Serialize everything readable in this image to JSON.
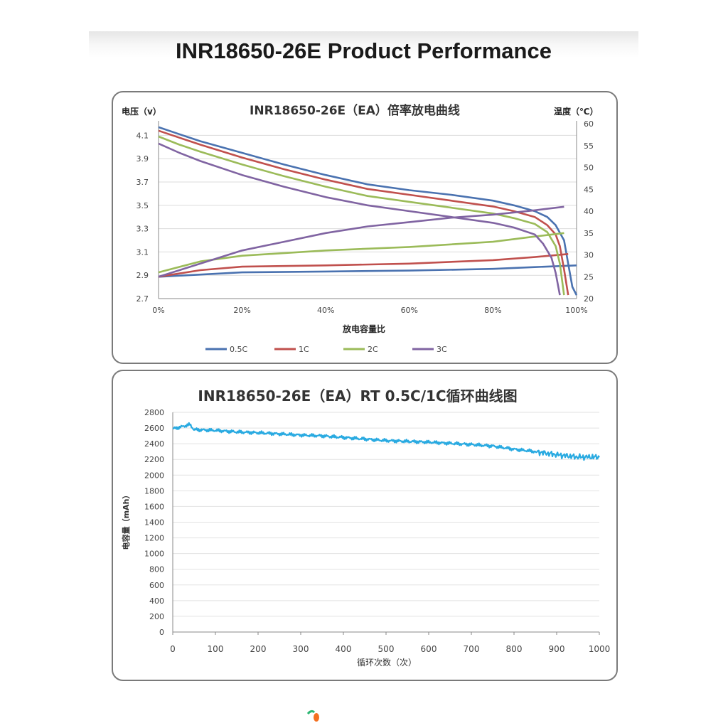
{
  "page_title": "INR18650-26E Product Performance",
  "chart_data": [
    {
      "type": "line",
      "title": "INR18650-26E（EA）倍率放电曲线",
      "ylabel": "电压（v）",
      "y2label": "温度（℃）",
      "xlabel": "放电容量比",
      "xlim": [
        0,
        100
      ],
      "ylim": [
        2.7,
        4.2
      ],
      "y2lim": [
        20,
        60
      ],
      "x_ticks": [
        "0%",
        "20%",
        "40%",
        "60%",
        "80%",
        "100%"
      ],
      "y_ticks": [
        "2.7",
        "2.9",
        "3.1",
        "3.3",
        "3.5",
        "3.7",
        "3.9",
        "4.1"
      ],
      "y2_ticks": [
        "20",
        "25",
        "30",
        "35",
        "40",
        "45",
        "50",
        "55",
        "60"
      ],
      "grid": true,
      "legend_position": "bottom",
      "series": [
        {
          "name": "0.5C",
          "color": "#4a72b0",
          "voltage": [
            [
              0,
              4.17
            ],
            [
              5,
              4.11
            ],
            [
              10,
              4.05
            ],
            [
              20,
              3.95
            ],
            [
              30,
              3.85
            ],
            [
              40,
              3.76
            ],
            [
              50,
              3.68
            ],
            [
              60,
              3.63
            ],
            [
              70,
              3.59
            ],
            [
              80,
              3.54
            ],
            [
              85,
              3.5
            ],
            [
              90,
              3.45
            ],
            [
              93,
              3.4
            ],
            [
              95,
              3.33
            ],
            [
              97,
              3.2
            ],
            [
              98,
              3.0
            ],
            [
              99,
              2.8
            ],
            [
              100,
              2.73
            ]
          ],
          "temperature": [
            [
              0,
              25
            ],
            [
              20,
              26
            ],
            [
              40,
              26.2
            ],
            [
              60,
              26.4
            ],
            [
              80,
              26.8
            ],
            [
              90,
              27.2
            ],
            [
              100,
              27.6
            ]
          ]
        },
        {
          "name": "1C",
          "color": "#c0504d",
          "voltage": [
            [
              0,
              4.14
            ],
            [
              5,
              4.08
            ],
            [
              10,
              4.02
            ],
            [
              20,
              3.91
            ],
            [
              30,
              3.81
            ],
            [
              40,
              3.72
            ],
            [
              50,
              3.64
            ],
            [
              60,
              3.59
            ],
            [
              70,
              3.54
            ],
            [
              80,
              3.49
            ],
            [
              85,
              3.45
            ],
            [
              90,
              3.4
            ],
            [
              93,
              3.33
            ],
            [
              95,
              3.25
            ],
            [
              96,
              3.15
            ],
            [
              97,
              2.95
            ],
            [
              98,
              2.73
            ]
          ],
          "temperature": [
            [
              0,
              25
            ],
            [
              10,
              26.5
            ],
            [
              20,
              27.3
            ],
            [
              40,
              27.6
            ],
            [
              60,
              28
            ],
            [
              80,
              28.8
            ],
            [
              90,
              29.5
            ],
            [
              98,
              30.2
            ]
          ]
        },
        {
          "name": "2C",
          "color": "#9bbb59",
          "voltage": [
            [
              0,
              4.09
            ],
            [
              5,
              4.02
            ],
            [
              10,
              3.96
            ],
            [
              20,
              3.85
            ],
            [
              30,
              3.75
            ],
            [
              40,
              3.66
            ],
            [
              50,
              3.58
            ],
            [
              60,
              3.53
            ],
            [
              70,
              3.48
            ],
            [
              80,
              3.43
            ],
            [
              85,
              3.39
            ],
            [
              90,
              3.34
            ],
            [
              93,
              3.27
            ],
            [
              95,
              3.15
            ],
            [
              96,
              3.0
            ],
            [
              97,
              2.73
            ]
          ],
          "temperature": [
            [
              0,
              26
            ],
            [
              10,
              28.5
            ],
            [
              20,
              29.8
            ],
            [
              40,
              31
            ],
            [
              60,
              31.8
            ],
            [
              80,
              33
            ],
            [
              90,
              34.2
            ],
            [
              97,
              35
            ]
          ]
        },
        {
          "name": "3C",
          "color": "#8064a2",
          "voltage": [
            [
              0,
              4.03
            ],
            [
              5,
              3.95
            ],
            [
              10,
              3.88
            ],
            [
              20,
              3.76
            ],
            [
              30,
              3.66
            ],
            [
              40,
              3.57
            ],
            [
              50,
              3.5
            ],
            [
              60,
              3.45
            ],
            [
              70,
              3.4
            ],
            [
              80,
              3.35
            ],
            [
              85,
              3.31
            ],
            [
              90,
              3.25
            ],
            [
              92,
              3.17
            ],
            [
              94,
              3.05
            ],
            [
              95,
              2.92
            ],
            [
              96,
              2.73
            ]
          ],
          "temperature": [
            [
              0,
              25
            ],
            [
              10,
              28
            ],
            [
              20,
              31
            ],
            [
              30,
              33
            ],
            [
              40,
              35
            ],
            [
              50,
              36.5
            ],
            [
              60,
              37.5
            ],
            [
              70,
              38.5
            ],
            [
              80,
              39.2
            ],
            [
              90,
              40.2
            ],
            [
              97,
              41
            ]
          ]
        }
      ]
    },
    {
      "type": "line",
      "title": "INR18650-26E（EA）RT 0.5C/1C循环曲线图",
      "ylabel": "电容量（mAh）",
      "xlabel": "循环次数（次）",
      "xlim": [
        0,
        1000
      ],
      "ylim": [
        0,
        2800
      ],
      "x_ticks": [
        "0",
        "100",
        "200",
        "300",
        "400",
        "500",
        "600",
        "700",
        "800",
        "900",
        "1000"
      ],
      "y_ticks": [
        "0",
        "200",
        "400",
        "600",
        "800",
        "1000",
        "1200",
        "1400",
        "1600",
        "1800",
        "2000",
        "2200",
        "2400",
        "2600",
        "2800"
      ],
      "grid": true,
      "series": [
        {
          "color": "#29aae1",
          "x": [
            0,
            20,
            40,
            50,
            100,
            150,
            200,
            250,
            300,
            350,
            400,
            450,
            500,
            550,
            600,
            650,
            700,
            750,
            800,
            850,
            900,
            950,
            1000
          ],
          "values": [
            2590,
            2615,
            2645,
            2580,
            2570,
            2550,
            2540,
            2525,
            2510,
            2500,
            2480,
            2460,
            2440,
            2430,
            2420,
            2405,
            2390,
            2370,
            2330,
            2300,
            2260,
            2230,
            2230
          ]
        }
      ]
    }
  ]
}
